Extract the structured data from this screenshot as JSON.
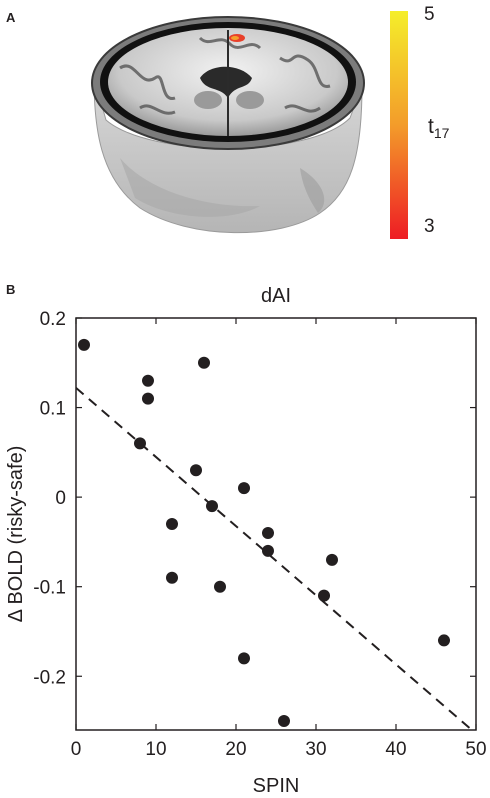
{
  "panel_a": {
    "letter": "A",
    "colorbar": {
      "max_label": "5",
      "min_label": "3",
      "label_main": "t",
      "label_sub": "17",
      "color_top": "#f5ee2a",
      "color_mid": "#f39c2a",
      "color_bottom": "#ee1c24"
    },
    "activation_color": "#e8402a"
  },
  "panel_b": {
    "letter": "B"
  },
  "chart_data": {
    "type": "scatter",
    "title": "dAI",
    "xlabel": "SPIN",
    "ylabel": "Δ BOLD (risky-safe)",
    "xlim": [
      0,
      50
    ],
    "ylim": [
      -0.26,
      0.2
    ],
    "xticks": [
      0,
      10,
      20,
      30,
      40,
      50
    ],
    "yticks": [
      0.2,
      0.1,
      0,
      -0.1,
      -0.2
    ],
    "ytick_labels": [
      "0.2",
      "0.1",
      "0",
      "-0.1",
      "-0.2"
    ],
    "xtick_labels": [
      "0",
      "10",
      "20",
      "30",
      "40",
      "50"
    ],
    "points": [
      {
        "x": 1,
        "y": 0.17
      },
      {
        "x": 8,
        "y": 0.06
      },
      {
        "x": 9,
        "y": 0.13
      },
      {
        "x": 9,
        "y": 0.11
      },
      {
        "x": 12,
        "y": -0.03
      },
      {
        "x": 12,
        "y": -0.09
      },
      {
        "x": 15,
        "y": 0.03
      },
      {
        "x": 16,
        "y": 0.15
      },
      {
        "x": 17,
        "y": -0.01
      },
      {
        "x": 18,
        "y": -0.1
      },
      {
        "x": 21,
        "y": 0.01
      },
      {
        "x": 21,
        "y": -0.18
      },
      {
        "x": 24,
        "y": -0.04
      },
      {
        "x": 24,
        "y": -0.06
      },
      {
        "x": 26,
        "y": -0.25
      },
      {
        "x": 31,
        "y": -0.11
      },
      {
        "x": 32,
        "y": -0.07
      },
      {
        "x": 46,
        "y": -0.16
      }
    ],
    "fit_line": {
      "x": [
        0,
        50
      ],
      "y": [
        0.122,
        -0.264
      ],
      "style": "dashed"
    },
    "grid": false,
    "point_color": "#231f20"
  }
}
